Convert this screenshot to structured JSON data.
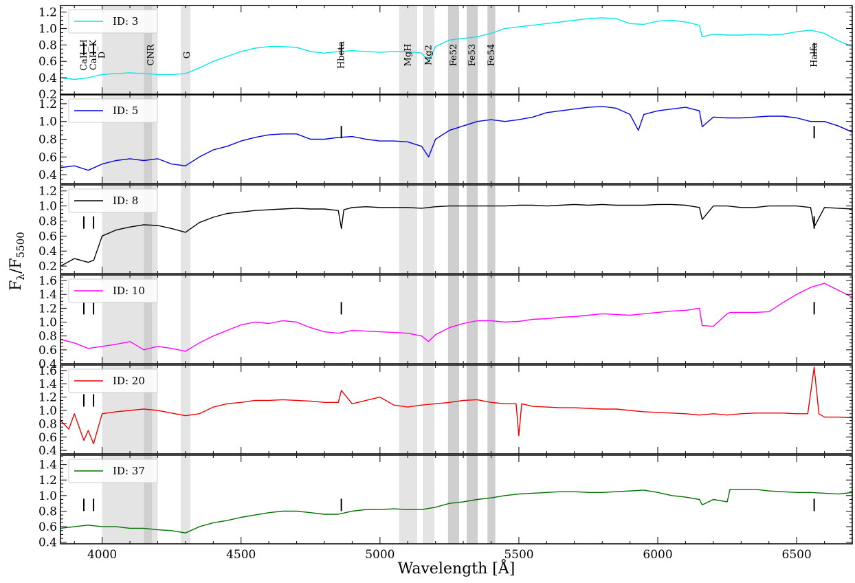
{
  "chart_data": {
    "type": "line",
    "xlabel": "Wavelength [Å]",
    "ylabel_main": "F",
    "ylabel_sub1": "λ",
    "ylabel_sep": "/F",
    "ylabel_sub2": "5500",
    "xlim": [
      3850,
      6700
    ],
    "xticks": [
      4000,
      4500,
      5000,
      5500,
      6000,
      6500
    ],
    "shaded_bands": [
      {
        "x0": 4000,
        "x1": 4150,
        "shade": "light"
      },
      {
        "x0": 4150,
        "x1": 4180,
        "shade": "dark"
      },
      {
        "x0": 4180,
        "x1": 4200,
        "shade": "light"
      },
      {
        "x0": 4283,
        "x1": 4318,
        "shade": "light"
      },
      {
        "x0": 5069,
        "x1": 5134,
        "shade": "light"
      },
      {
        "x0": 5154,
        "x1": 5196,
        "shade": "light"
      },
      {
        "x0": 5245,
        "x1": 5285,
        "shade": "dark"
      },
      {
        "x0": 5312,
        "x1": 5352,
        "shade": "dark"
      },
      {
        "x0": 5387,
        "x1": 5415,
        "shade": "dark"
      }
    ],
    "line_labels": [
      {
        "text": "CaII_H",
        "x": 3934
      },
      {
        "text": "CaII_K",
        "x": 3969
      },
      {
        "text": "D",
        "x": 4000
      },
      {
        "text": "CNR",
        "x": 4175
      },
      {
        "text": "G",
        "x": 4305
      },
      {
        "text": "Hbeta",
        "x": 4861
      },
      {
        "text": "MgH",
        "x": 5100
      },
      {
        "text": "Mg2",
        "x": 5175
      },
      {
        "text": "Fe52",
        "x": 5265
      },
      {
        "text": "Fe53",
        "x": 5332
      },
      {
        "text": "Fe54",
        "x": 5401
      },
      {
        "text": "Halfa",
        "x": 6563
      }
    ],
    "panels": [
      {
        "legend": "ID: 3",
        "color": "#00e8e8",
        "ylim": [
          0.2,
          1.28
        ],
        "yticks": [
          0.2,
          0.4,
          0.6,
          0.8,
          1.0,
          1.2
        ],
        "y_tick_labels": [
          "0.2",
          "0.4",
          "0.6",
          "0.8",
          "1.0",
          "1.2"
        ],
        "markers": [
          3934,
          3969,
          4861,
          6563
        ],
        "marker_y": 0.75,
        "x": [
          3850,
          3900,
          3950,
          4000,
          4050,
          4100,
          4150,
          4200,
          4250,
          4300,
          4350,
          4400,
          4450,
          4500,
          4550,
          4600,
          4650,
          4700,
          4750,
          4800,
          4850,
          4900,
          4950,
          5000,
          5050,
          5100,
          5150,
          5175,
          5200,
          5250,
          5300,
          5350,
          5400,
          5450,
          5500,
          5550,
          5600,
          5650,
          5700,
          5750,
          5800,
          5850,
          5900,
          5950,
          6000,
          6050,
          6100,
          6150,
          6160,
          6200,
          6250,
          6300,
          6350,
          6400,
          6450,
          6500,
          6550,
          6600,
          6650,
          6700
        ],
        "y": [
          0.4,
          0.38,
          0.4,
          0.44,
          0.45,
          0.46,
          0.45,
          0.44,
          0.44,
          0.45,
          0.52,
          0.6,
          0.66,
          0.72,
          0.76,
          0.78,
          0.78,
          0.77,
          0.72,
          0.7,
          0.72,
          0.73,
          0.72,
          0.71,
          0.72,
          0.72,
          0.7,
          0.6,
          0.78,
          0.86,
          0.88,
          0.9,
          0.94,
          1.0,
          1.02,
          1.04,
          1.06,
          1.08,
          1.1,
          1.12,
          1.13,
          1.12,
          1.06,
          1.05,
          1.09,
          1.1,
          1.08,
          1.04,
          0.9,
          0.93,
          0.92,
          0.92,
          0.93,
          0.92,
          0.93,
          0.96,
          0.98,
          0.94,
          0.85,
          0.78
        ]
      },
      {
        "legend": "ID: 5",
        "color": "#0000dd",
        "ylim": [
          0.3,
          1.3
        ],
        "yticks": [
          0.4,
          0.6,
          0.8,
          1.0,
          1.2
        ],
        "y_tick_labels": [
          "0.4",
          "0.6",
          "0.8",
          "1.0",
          "1.2"
        ],
        "markers": [
          4861,
          6563
        ],
        "marker_y": 0.88,
        "x": [
          3850,
          3900,
          3950,
          4000,
          4050,
          4100,
          4150,
          4200,
          4250,
          4300,
          4350,
          4400,
          4450,
          4500,
          4550,
          4600,
          4650,
          4700,
          4750,
          4800,
          4850,
          4900,
          4950,
          5000,
          5050,
          5100,
          5150,
          5175,
          5200,
          5250,
          5300,
          5350,
          5400,
          5450,
          5500,
          5550,
          5600,
          5650,
          5700,
          5750,
          5800,
          5850,
          5900,
          5930,
          5950,
          6000,
          6050,
          6100,
          6150,
          6160,
          6200,
          6250,
          6300,
          6350,
          6400,
          6450,
          6500,
          6550,
          6600,
          6650,
          6700
        ],
        "y": [
          0.48,
          0.5,
          0.45,
          0.52,
          0.56,
          0.58,
          0.56,
          0.58,
          0.52,
          0.5,
          0.6,
          0.68,
          0.72,
          0.78,
          0.82,
          0.85,
          0.86,
          0.86,
          0.8,
          0.8,
          0.82,
          0.83,
          0.8,
          0.78,
          0.78,
          0.77,
          0.72,
          0.6,
          0.8,
          0.9,
          0.95,
          1.0,
          1.02,
          1.0,
          1.02,
          1.05,
          1.1,
          1.12,
          1.14,
          1.16,
          1.17,
          1.15,
          1.08,
          0.9,
          1.08,
          1.12,
          1.14,
          1.16,
          1.12,
          0.94,
          1.05,
          1.04,
          1.04,
          1.05,
          1.06,
          1.06,
          1.04,
          1.0,
          1.0,
          0.95,
          0.88
        ]
      },
      {
        "legend": "ID: 8",
        "color": "#000000",
        "ylim": [
          0.1,
          1.28
        ],
        "yticks": [
          0.2,
          0.4,
          0.6,
          0.8,
          1.0,
          1.2
        ],
        "y_tick_labels": [
          "0.2",
          "0.4",
          "0.6",
          "0.8",
          "1.0",
          "1.2"
        ],
        "markers": [
          3934,
          3969,
          6563
        ],
        "marker_y": 0.78,
        "x": [
          3850,
          3900,
          3950,
          3970,
          4000,
          4050,
          4100,
          4150,
          4200,
          4250,
          4300,
          4350,
          4400,
          4450,
          4500,
          4550,
          4600,
          4650,
          4700,
          4750,
          4800,
          4850,
          4861,
          4870,
          4900,
          4950,
          5000,
          5050,
          5100,
          5150,
          5200,
          5250,
          5300,
          5350,
          5400,
          5450,
          5500,
          5550,
          5600,
          5650,
          5700,
          5750,
          5800,
          5850,
          5900,
          5950,
          6000,
          6050,
          6100,
          6150,
          6160,
          6200,
          6250,
          6300,
          6350,
          6400,
          6450,
          6500,
          6550,
          6563,
          6600,
          6650,
          6700
        ],
        "y": [
          0.2,
          0.3,
          0.25,
          0.28,
          0.6,
          0.68,
          0.72,
          0.75,
          0.74,
          0.7,
          0.65,
          0.78,
          0.85,
          0.9,
          0.92,
          0.94,
          0.95,
          0.96,
          0.97,
          0.96,
          0.96,
          0.94,
          0.7,
          0.95,
          0.98,
          0.99,
          0.98,
          0.98,
          0.98,
          0.97,
          0.99,
          1.0,
          1.0,
          1.0,
          1.0,
          1.0,
          1.01,
          1.01,
          1.0,
          1.01,
          1.02,
          1.01,
          1.02,
          1.01,
          1.01,
          1.01,
          1.02,
          1.02,
          1.01,
          0.98,
          0.82,
          1.0,
          1.0,
          0.98,
          0.98,
          1.0,
          1.0,
          1.0,
          0.98,
          0.72,
          0.98,
          0.97,
          0.96
        ]
      },
      {
        "legend": "ID: 10",
        "color": "#ff00ff",
        "ylim": [
          0.4,
          1.68
        ],
        "yticks": [
          0.4,
          0.6,
          0.8,
          1.0,
          1.2,
          1.4,
          1.6
        ],
        "y_tick_labels": [
          "0.4",
          "0.6",
          "0.8",
          "1.0",
          "1.2",
          "1.4",
          "1.6"
        ],
        "markers": [
          3934,
          3969,
          4861,
          6563
        ],
        "marker_y": 1.2,
        "x": [
          3850,
          3900,
          3950,
          4000,
          4050,
          4100,
          4150,
          4200,
          4250,
          4300,
          4350,
          4400,
          4450,
          4500,
          4550,
          4600,
          4650,
          4700,
          4750,
          4800,
          4850,
          4900,
          4950,
          5000,
          5050,
          5100,
          5150,
          5175,
          5200,
          5250,
          5300,
          5350,
          5400,
          5450,
          5500,
          5550,
          5600,
          5650,
          5700,
          5750,
          5800,
          5850,
          5900,
          5950,
          6000,
          6050,
          6100,
          6150,
          6160,
          6200,
          6250,
          6260,
          6300,
          6350,
          6400,
          6450,
          6500,
          6550,
          6600,
          6650,
          6700
        ],
        "y": [
          0.75,
          0.7,
          0.62,
          0.65,
          0.68,
          0.72,
          0.6,
          0.65,
          0.62,
          0.58,
          0.7,
          0.8,
          0.88,
          0.96,
          1.0,
          0.98,
          1.02,
          1.0,
          0.92,
          0.86,
          0.84,
          0.88,
          0.87,
          0.86,
          0.85,
          0.84,
          0.8,
          0.72,
          0.82,
          0.92,
          0.98,
          1.02,
          1.02,
          1.0,
          1.01,
          1.04,
          1.05,
          1.07,
          1.08,
          1.1,
          1.12,
          1.11,
          1.1,
          1.12,
          1.14,
          1.16,
          1.17,
          1.2,
          0.95,
          0.94,
          1.12,
          1.14,
          1.14,
          1.14,
          1.15,
          1.28,
          1.4,
          1.5,
          1.56,
          1.46,
          1.36
        ]
      },
      {
        "legend": "ID: 20",
        "color": "#ee0000",
        "ylim": [
          0.35,
          1.68
        ],
        "yticks": [
          0.4,
          0.6,
          0.8,
          1.0,
          1.2,
          1.4,
          1.6
        ],
        "y_tick_labels": [
          "0.4",
          "0.6",
          "0.8",
          "1.0",
          "1.2",
          "1.4",
          "1.6"
        ],
        "markers": [
          3934,
          3969
        ],
        "marker_y": 1.15,
        "x": [
          3850,
          3880,
          3900,
          3934,
          3950,
          3969,
          4000,
          4050,
          4100,
          4150,
          4200,
          4250,
          4300,
          4350,
          4400,
          4450,
          4500,
          4550,
          4600,
          4650,
          4700,
          4750,
          4800,
          4850,
          4861,
          4900,
          4950,
          5000,
          5050,
          5100,
          5150,
          5200,
          5250,
          5300,
          5350,
          5400,
          5450,
          5490,
          5500,
          5510,
          5550,
          5600,
          5650,
          5700,
          5750,
          5800,
          5850,
          5900,
          5950,
          6000,
          6050,
          6100,
          6150,
          6200,
          6250,
          6300,
          6350,
          6400,
          6450,
          6500,
          6540,
          6563,
          6580,
          6600,
          6650,
          6700
        ],
        "y": [
          0.85,
          0.72,
          0.95,
          0.55,
          0.7,
          0.5,
          0.95,
          0.98,
          1.0,
          1.02,
          1.0,
          0.96,
          0.92,
          0.95,
          1.05,
          1.1,
          1.12,
          1.15,
          1.15,
          1.16,
          1.15,
          1.14,
          1.12,
          1.12,
          1.3,
          1.1,
          1.15,
          1.2,
          1.08,
          1.05,
          1.08,
          1.1,
          1.12,
          1.15,
          1.16,
          1.12,
          1.1,
          1.1,
          0.62,
          1.1,
          1.06,
          1.05,
          1.04,
          1.04,
          1.03,
          1.02,
          1.02,
          1.0,
          0.98,
          0.97,
          0.96,
          0.95,
          0.93,
          0.95,
          0.93,
          0.95,
          0.96,
          0.96,
          0.96,
          0.95,
          0.95,
          1.65,
          0.95,
          0.9,
          0.9,
          0.89
        ]
      },
      {
        "legend": "ID: 37",
        "color": "#007000",
        "ylim": [
          0.38,
          1.52
        ],
        "yticks": [
          0.4,
          0.6,
          0.8,
          1.0,
          1.2,
          1.4
        ],
        "y_tick_labels": [
          "0.4",
          "0.6",
          "0.8",
          "1.0",
          "1.2",
          "1.4"
        ],
        "markers": [
          3934,
          3969,
          4861,
          6563
        ],
        "marker_y": 0.88,
        "x": [
          3850,
          3900,
          3950,
          4000,
          4050,
          4100,
          4150,
          4200,
          4250,
          4300,
          4350,
          4400,
          4450,
          4500,
          4550,
          4600,
          4650,
          4700,
          4750,
          4800,
          4850,
          4900,
          4950,
          5000,
          5050,
          5100,
          5150,
          5200,
          5250,
          5300,
          5350,
          5400,
          5450,
          5500,
          5550,
          5600,
          5650,
          5700,
          5750,
          5800,
          5850,
          5900,
          5950,
          6000,
          6050,
          6100,
          6150,
          6160,
          6200,
          6250,
          6260,
          6300,
          6350,
          6400,
          6450,
          6500,
          6550,
          6600,
          6650,
          6700
        ],
        "y": [
          0.58,
          0.6,
          0.62,
          0.6,
          0.6,
          0.58,
          0.58,
          0.56,
          0.55,
          0.52,
          0.6,
          0.65,
          0.68,
          0.72,
          0.75,
          0.78,
          0.8,
          0.8,
          0.78,
          0.76,
          0.76,
          0.8,
          0.82,
          0.82,
          0.83,
          0.82,
          0.82,
          0.85,
          0.9,
          0.92,
          0.95,
          0.97,
          1.0,
          1.02,
          1.03,
          1.04,
          1.05,
          1.05,
          1.04,
          1.04,
          1.05,
          1.06,
          1.07,
          1.04,
          1.0,
          0.98,
          0.95,
          0.88,
          0.95,
          0.92,
          1.08,
          1.08,
          1.08,
          1.06,
          1.05,
          1.04,
          1.04,
          1.03,
          1.02,
          1.04
        ]
      }
    ]
  }
}
